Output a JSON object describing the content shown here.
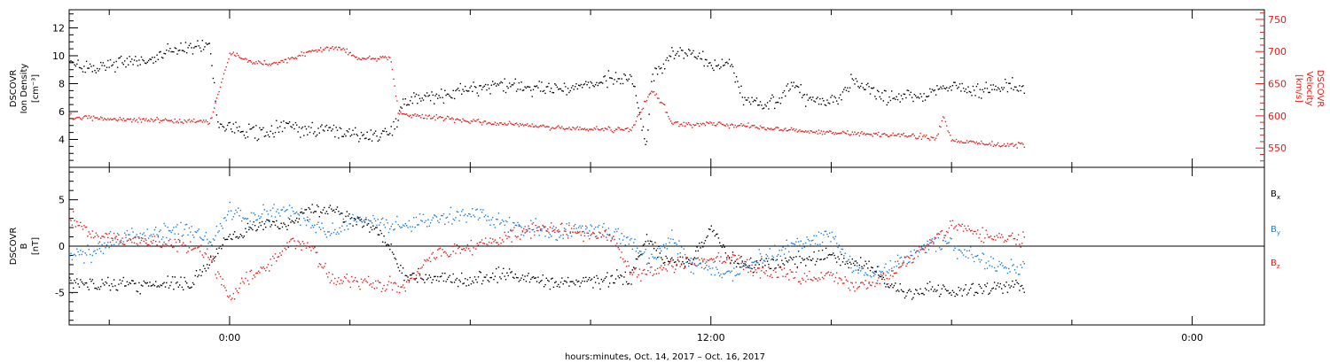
{
  "figure": {
    "xlabel": "hours:minutes, Oct. 14, 2017 – Oct. 16, 2017",
    "x_ticks": [
      {
        "label": "0:00",
        "hour": 0
      },
      {
        "label": "12:00",
        "hour": 12
      },
      {
        "label": "0:00",
        "hour": 24
      }
    ],
    "x_range_hours": [
      -4.0,
      25.8
    ],
    "data_end_hour": 19.8,
    "colors": {
      "black": "#000000",
      "red": "#e0201c",
      "blue": "#1a7fd8"
    }
  },
  "chart_data": [
    {
      "type": "scatter",
      "panel": "top",
      "ylabel_lines": [
        "DSCOVR",
        "Ion Density",
        "[cm⁻³]"
      ],
      "y_left_range": [
        2.0,
        13.3
      ],
      "y_left_ticks": [
        4,
        6,
        8,
        10,
        12
      ],
      "ylabel_right_lines": [
        "DSCOVR",
        "Velocity",
        "[km/s]"
      ],
      "y_right_range": [
        520,
        765
      ],
      "y_right_ticks": [
        550,
        600,
        650,
        700,
        750
      ],
      "series": [
        {
          "axis": "left",
          "color": "#000000",
          "knots": [
            [
              -4.0,
              9.5
            ],
            [
              -3.5,
              9.2
            ],
            [
              -2.5,
              9.6
            ],
            [
              -1.8,
              10.0
            ],
            [
              -1.5,
              10.4
            ],
            [
              -1.0,
              10.7
            ],
            [
              -0.5,
              11.0
            ],
            [
              -0.3,
              5.0
            ],
            [
              0.5,
              4.6
            ],
            [
              1.0,
              4.5
            ],
            [
              1.4,
              5.2
            ],
            [
              1.6,
              4.8
            ],
            [
              2.0,
              4.6
            ],
            [
              2.5,
              4.7
            ],
            [
              3.0,
              4.5
            ],
            [
              3.5,
              4.2
            ],
            [
              4.0,
              4.5
            ],
            [
              4.3,
              6.5
            ],
            [
              4.8,
              7.0
            ],
            [
              5.5,
              7.2
            ],
            [
              6.0,
              7.6
            ],
            [
              6.5,
              7.9
            ],
            [
              7.0,
              8.0
            ],
            [
              7.5,
              7.8
            ],
            [
              8.0,
              7.6
            ],
            [
              8.5,
              7.8
            ],
            [
              9.0,
              8.0
            ],
            [
              9.5,
              8.3
            ],
            [
              10.0,
              8.5
            ],
            [
              10.4,
              3.5
            ],
            [
              10.5,
              8.5
            ],
            [
              11.0,
              10.0
            ],
            [
              11.5,
              10.3
            ],
            [
              11.8,
              9.9
            ],
            [
              12.0,
              9.4
            ],
            [
              12.5,
              9.4
            ],
            [
              12.8,
              6.8
            ],
            [
              13.2,
              6.6
            ],
            [
              13.7,
              6.8
            ],
            [
              14.0,
              8.0
            ],
            [
              14.3,
              7.1
            ],
            [
              14.8,
              6.8
            ],
            [
              15.2,
              7.0
            ],
            [
              15.5,
              8.2
            ],
            [
              15.8,
              7.9
            ],
            [
              16.2,
              7.2
            ],
            [
              16.6,
              7.0
            ],
            [
              17.0,
              7.3
            ],
            [
              17.3,
              7.1
            ],
            [
              17.6,
              7.6
            ],
            [
              18.0,
              7.8
            ],
            [
              18.5,
              7.5
            ],
            [
              19.0,
              7.7
            ],
            [
              19.5,
              7.9
            ],
            [
              19.8,
              7.7
            ]
          ],
          "spread": 0.45,
          "points": 800
        },
        {
          "axis": "right",
          "color": "#e0201c",
          "knots": [
            [
              -4.0,
              600
            ],
            [
              -3.0,
              596
            ],
            [
              -2.0,
              594
            ],
            [
              -1.0,
              592
            ],
            [
              -0.5,
              591
            ],
            [
              0.0,
              700
            ],
            [
              0.5,
              685
            ],
            [
              1.0,
              680
            ],
            [
              1.5,
              690
            ],
            [
              2.0,
              700
            ],
            [
              2.4,
              707
            ],
            [
              2.8,
              705
            ],
            [
              3.2,
              690
            ],
            [
              3.6,
              690
            ],
            [
              4.0,
              692
            ],
            [
              4.2,
              604
            ],
            [
              4.8,
              600
            ],
            [
              5.5,
              596
            ],
            [
              6.0,
              592
            ],
            [
              7.0,
              588
            ],
            [
              8.0,
              583
            ],
            [
              9.0,
              581
            ],
            [
              9.5,
              580
            ],
            [
              10.0,
              579
            ],
            [
              10.5,
              640
            ],
            [
              10.8,
              620
            ],
            [
              11.0,
              590
            ],
            [
              11.5,
              587
            ],
            [
              12.0,
              589
            ],
            [
              12.5,
              586
            ],
            [
              13.0,
              585
            ],
            [
              13.5,
              580
            ],
            [
              14.0,
              578
            ],
            [
              15.0,
              575
            ],
            [
              16.0,
              572
            ],
            [
              17.0,
              570
            ],
            [
              17.6,
              566
            ],
            [
              17.8,
              600
            ],
            [
              18.0,
              562
            ],
            [
              18.5,
              560
            ],
            [
              19.0,
              556
            ],
            [
              19.8,
              555
            ]
          ],
          "spread": 3.5,
          "points": 800
        }
      ]
    },
    {
      "type": "scatter",
      "panel": "bottom",
      "ylabel_lines": [
        "DSCOVR",
        "B",
        "[nT]"
      ],
      "y_range": [
        -8.5,
        8.5
      ],
      "y_ticks": [
        -5,
        0,
        5
      ],
      "zero_line": true,
      "legend": [
        {
          "label": "B",
          "sub": "x",
          "color": "#000000"
        },
        {
          "label": "B",
          "sub": "y",
          "color": "#1a7fd8"
        },
        {
          "label": "B",
          "sub": "z",
          "color": "#e0201c"
        }
      ],
      "series": [
        {
          "name": "Bx",
          "color": "#000000",
          "knots": [
            [
              -4.0,
              -4.0
            ],
            [
              -3.0,
              -4.2
            ],
            [
              -2.0,
              -4.0
            ],
            [
              -1.0,
              -4.1
            ],
            [
              0.0,
              1.0
            ],
            [
              0.5,
              2.0
            ],
            [
              1.0,
              2.5
            ],
            [
              1.5,
              2.5
            ],
            [
              2.0,
              4.0
            ],
            [
              2.5,
              4.0
            ],
            [
              3.0,
              3.0
            ],
            [
              3.5,
              2.5
            ],
            [
              4.0,
              0.0
            ],
            [
              4.3,
              -3.0
            ],
            [
              5.0,
              -3.5
            ],
            [
              6.0,
              -3.6
            ],
            [
              7.0,
              -3.0
            ],
            [
              8.0,
              -4.0
            ],
            [
              9.0,
              -3.8
            ],
            [
              10.0,
              -3.2
            ],
            [
              10.4,
              1.0
            ],
            [
              10.8,
              -1.5
            ],
            [
              11.5,
              -1.5
            ],
            [
              12.0,
              2.0
            ],
            [
              12.5,
              -1.5
            ],
            [
              13.0,
              -2.0
            ],
            [
              14.0,
              -1.6
            ],
            [
              15.0,
              -1.0
            ],
            [
              16.0,
              -2.5
            ],
            [
              16.5,
              -4.5
            ],
            [
              17.0,
              -5.0
            ],
            [
              17.5,
              -4.5
            ],
            [
              18.0,
              -4.8
            ],
            [
              19.0,
              -4.5
            ],
            [
              19.8,
              -4.0
            ]
          ],
          "spread": 0.7,
          "points": 800
        },
        {
          "name": "By",
          "color": "#1a7fd8",
          "knots": [
            [
              -4.0,
              -1.5
            ],
            [
              -3.0,
              0.5
            ],
            [
              -2.0,
              1.5
            ],
            [
              -1.0,
              2.0
            ],
            [
              -0.5,
              0.5
            ],
            [
              0.0,
              4.0
            ],
            [
              0.5,
              3.0
            ],
            [
              1.0,
              3.5
            ],
            [
              1.5,
              4.0
            ],
            [
              2.0,
              2.5
            ],
            [
              2.5,
              1.5
            ],
            [
              3.0,
              3.0
            ],
            [
              3.5,
              3.0
            ],
            [
              4.0,
              2.0
            ],
            [
              5.0,
              3.0
            ],
            [
              6.0,
              3.5
            ],
            [
              6.5,
              3.0
            ],
            [
              7.0,
              2.5
            ],
            [
              8.0,
              1.5
            ],
            [
              9.0,
              2.0
            ],
            [
              9.5,
              1.5
            ],
            [
              10.0,
              0.5
            ],
            [
              10.5,
              -1.5
            ],
            [
              11.0,
              1.0
            ],
            [
              11.5,
              -2.0
            ],
            [
              12.0,
              -2.5
            ],
            [
              12.5,
              -3.0
            ],
            [
              13.0,
              -1.5
            ],
            [
              13.5,
              -1.0
            ],
            [
              14.0,
              0.0
            ],
            [
              15.0,
              1.5
            ],
            [
              15.5,
              -2.0
            ],
            [
              16.0,
              -3.0
            ],
            [
              17.0,
              -1.0
            ],
            [
              17.5,
              0.5
            ],
            [
              18.0,
              0.0
            ],
            [
              18.5,
              -1.0
            ],
            [
              19.0,
              -2.0
            ],
            [
              19.8,
              -2.5
            ]
          ],
          "spread": 0.8,
          "points": 800
        },
        {
          "name": "Bz",
          "color": "#e0201c",
          "knots": [
            [
              -4.0,
              3.0
            ],
            [
              -3.5,
              1.5
            ],
            [
              -3.0,
              1.0
            ],
            [
              -2.0,
              0.5
            ],
            [
              -1.0,
              0.0
            ],
            [
              -0.5,
              -1.0
            ],
            [
              0.0,
              -5.5
            ],
            [
              0.5,
              -3.0
            ],
            [
              1.0,
              -2.0
            ],
            [
              1.5,
              0.5
            ],
            [
              2.0,
              0.0
            ],
            [
              2.5,
              -3.5
            ],
            [
              3.5,
              -4.0
            ],
            [
              4.0,
              -4.0
            ],
            [
              4.3,
              -4.5
            ],
            [
              5.0,
              -1.0
            ],
            [
              6.0,
              0.0
            ],
            [
              7.0,
              1.5
            ],
            [
              8.0,
              2.0
            ],
            [
              9.0,
              1.5
            ],
            [
              9.5,
              1.0
            ],
            [
              10.0,
              -3.0
            ],
            [
              11.0,
              -2.0
            ],
            [
              12.0,
              -1.5
            ],
            [
              12.5,
              -1.0
            ],
            [
              13.0,
              -2.5
            ],
            [
              14.0,
              -3.0
            ],
            [
              14.5,
              -3.5
            ],
            [
              15.0,
              -3.0
            ],
            [
              15.5,
              -4.5
            ],
            [
              16.0,
              -4.0
            ],
            [
              16.5,
              -3.0
            ],
            [
              17.0,
              -1.0
            ],
            [
              17.5,
              0.5
            ],
            [
              17.8,
              1.5
            ],
            [
              18.0,
              2.5
            ],
            [
              18.5,
              1.5
            ],
            [
              19.0,
              1.0
            ],
            [
              19.5,
              1.0
            ],
            [
              19.8,
              0.5
            ]
          ],
          "spread": 0.7,
          "points": 800
        }
      ]
    }
  ]
}
